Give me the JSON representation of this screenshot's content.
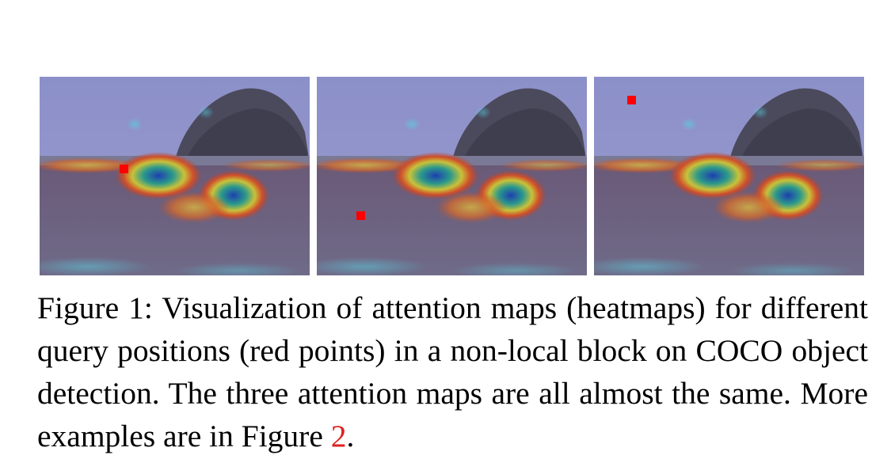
{
  "figure": {
    "panels": [
      {
        "id": "query-1",
        "query_point": {
          "description": "red point on left bird"
        }
      },
      {
        "id": "query-2",
        "query_point": {
          "description": "red point on ground"
        }
      },
      {
        "id": "query-3",
        "query_point": {
          "description": "red point in sky"
        }
      }
    ],
    "colors": {
      "query_point": "#ff0000",
      "sky": "#8a8fc8",
      "ground": "#6e6a8a",
      "reference_link": "#e02020"
    },
    "caption": {
      "label": "Figure 1:",
      "text_before_ref": "Visualization of attention maps (heatmaps) for different query positions (red points) in a non-local block on COCO object detection. The three attention maps are all almost the same. More examples are in Figure",
      "ref": "2",
      "text_after_ref": "."
    }
  }
}
